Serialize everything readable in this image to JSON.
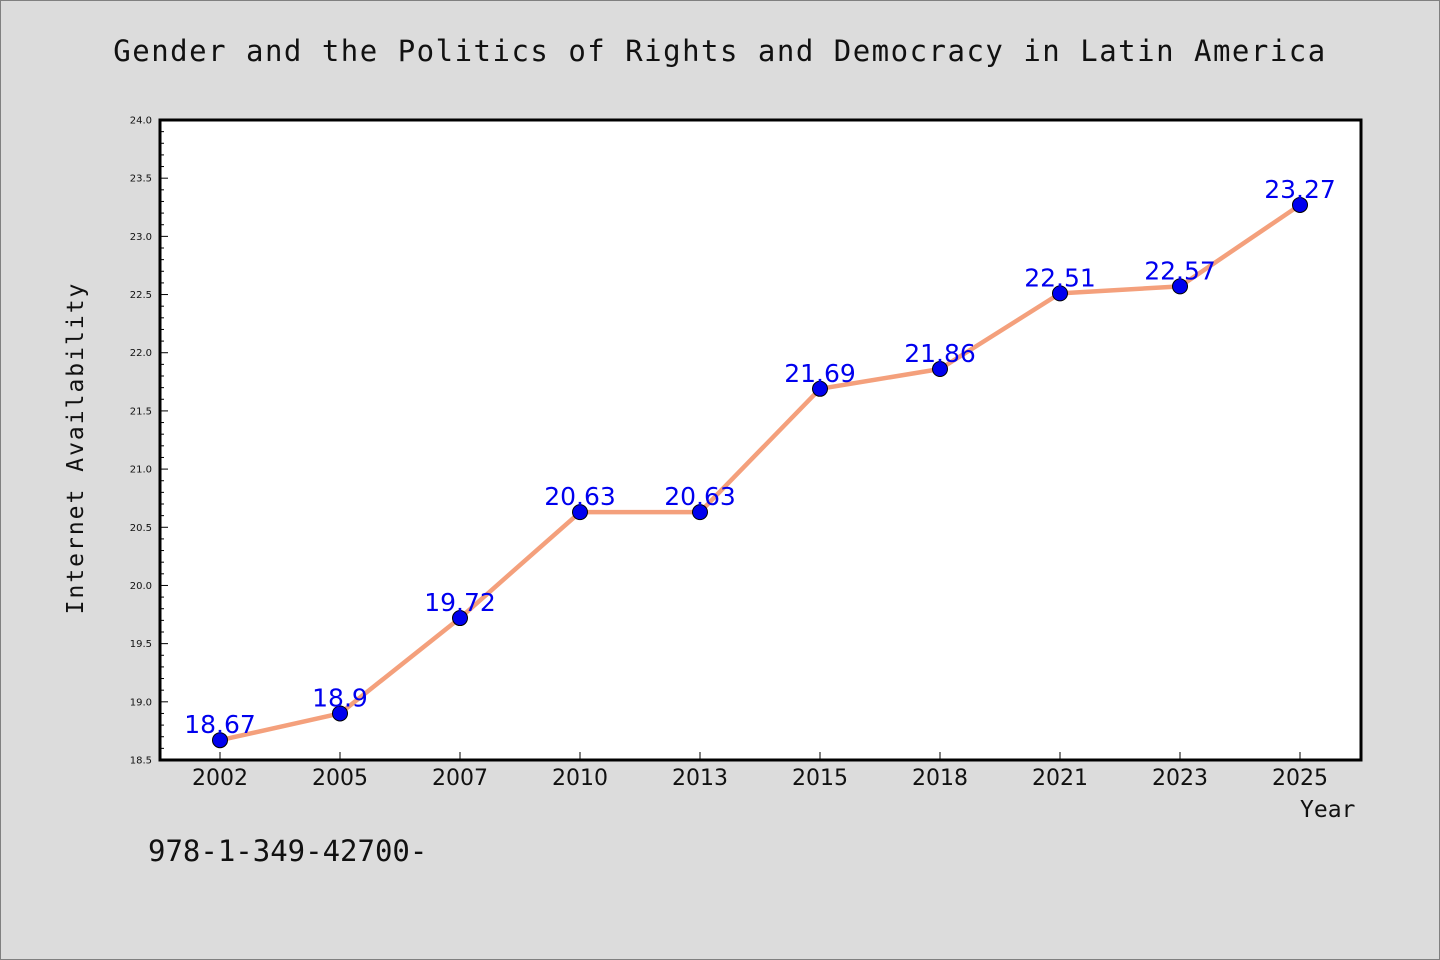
{
  "chart_data": {
    "type": "line",
    "title": "Gender and the Politics of Rights and Democracy in Latin America",
    "xlabel": "Year",
    "ylabel": "Internet Availability",
    "categories": [
      "2002",
      "2005",
      "2007",
      "2010",
      "2013",
      "2015",
      "2018",
      "2021",
      "2023",
      "2025"
    ],
    "series": [
      {
        "values": [
          18.67,
          18.9,
          19.72,
          20.63,
          20.63,
          21.69,
          21.86,
          22.51,
          22.57,
          23.27
        ],
        "labels": [
          "18.67",
          "18.9",
          "19.72",
          "20.63",
          "20.63",
          "21.69",
          "21.86",
          "22.51",
          "22.57",
          "23.27"
        ],
        "line_color": "#f4a07c",
        "marker_color": "#0000ee"
      }
    ],
    "ylim": [
      18.5,
      24.0
    ],
    "yticks": [
      "18.5",
      "19.0",
      "19.5",
      "20.0",
      "20.5",
      "21.0",
      "21.5",
      "22.0",
      "22.5",
      "23.0",
      "23.5",
      "24.0"
    ],
    "grid": false,
    "legend": "none"
  },
  "footnote": "978-1-349-42700-",
  "colors": {
    "background": "#dcdcdc",
    "plot_background": "#ffffff",
    "line": "#f4a07c",
    "marker": "#0000ee",
    "label": "#0000ee"
  }
}
